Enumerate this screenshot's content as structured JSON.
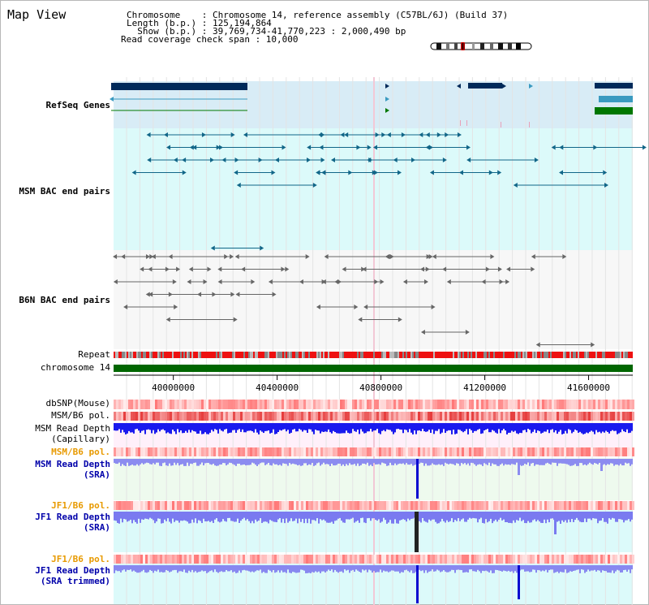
{
  "page": {
    "title": "Map View"
  },
  "info": {
    "chromosome_line": "Chromosome    : Chromosome 14, reference assembly (C57BL/6J) (Build 37)",
    "length_line": "Length (b.p.) : 125,194,864",
    "show_line": "  Show (b.p.) : 39,769,734-41,770,223 : 2,000,490 bp",
    "span_line": "Read coverage check span : 10,000"
  },
  "tracks": {
    "refseq": "RefSeq Genes",
    "msm_bac": "MSM BAC end pairs",
    "b6n_bac": "B6N BAC end pairs",
    "repeat": "Repeat",
    "chromosome": "chromosome 14",
    "dbsnp": "dbSNP(Mouse)",
    "msm_b6_pol_1": "MSM/B6 pol.",
    "msm_read_depth_cap_1": "MSM Read Depth",
    "msm_read_depth_cap_2": "(Capillary)",
    "msm_b6_pol_2": "MSM/B6 pol.",
    "msm_read_depth_sra_1": "MSM Read Depth",
    "msm_read_depth_sra_2": "(SRA)",
    "jf1_b6_pol_1": "JF1/B6 pol.",
    "jf1_read_depth_sra_1": "JF1 Read Depth",
    "jf1_read_depth_sra_2": "(SRA)",
    "jf1_b6_pol_2": "JF1/B6 pol.",
    "jf1_read_depth_trim_1": "JF1 Read Depth",
    "jf1_read_depth_trim_2": "(SRA trimmed)"
  },
  "axis": {
    "ticks": [
      "40000000",
      "40400000",
      "40800000",
      "41200000",
      "41600000"
    ],
    "tick_values": [
      40000000,
      40400000,
      40800000,
      41200000,
      41600000
    ],
    "range": [
      39769734,
      41770223
    ]
  },
  "colors": {
    "refseq_label": "#0000cc",
    "msm_label": "#006688",
    "b6n_label": "#555555",
    "orange_label": "#e89a00",
    "blue_label": "#0000aa",
    "gene_dark": "#002a5a",
    "gene_mid": "#3a9ac0",
    "gene_green": "#007700",
    "chrom_green": "#006600"
  }
}
